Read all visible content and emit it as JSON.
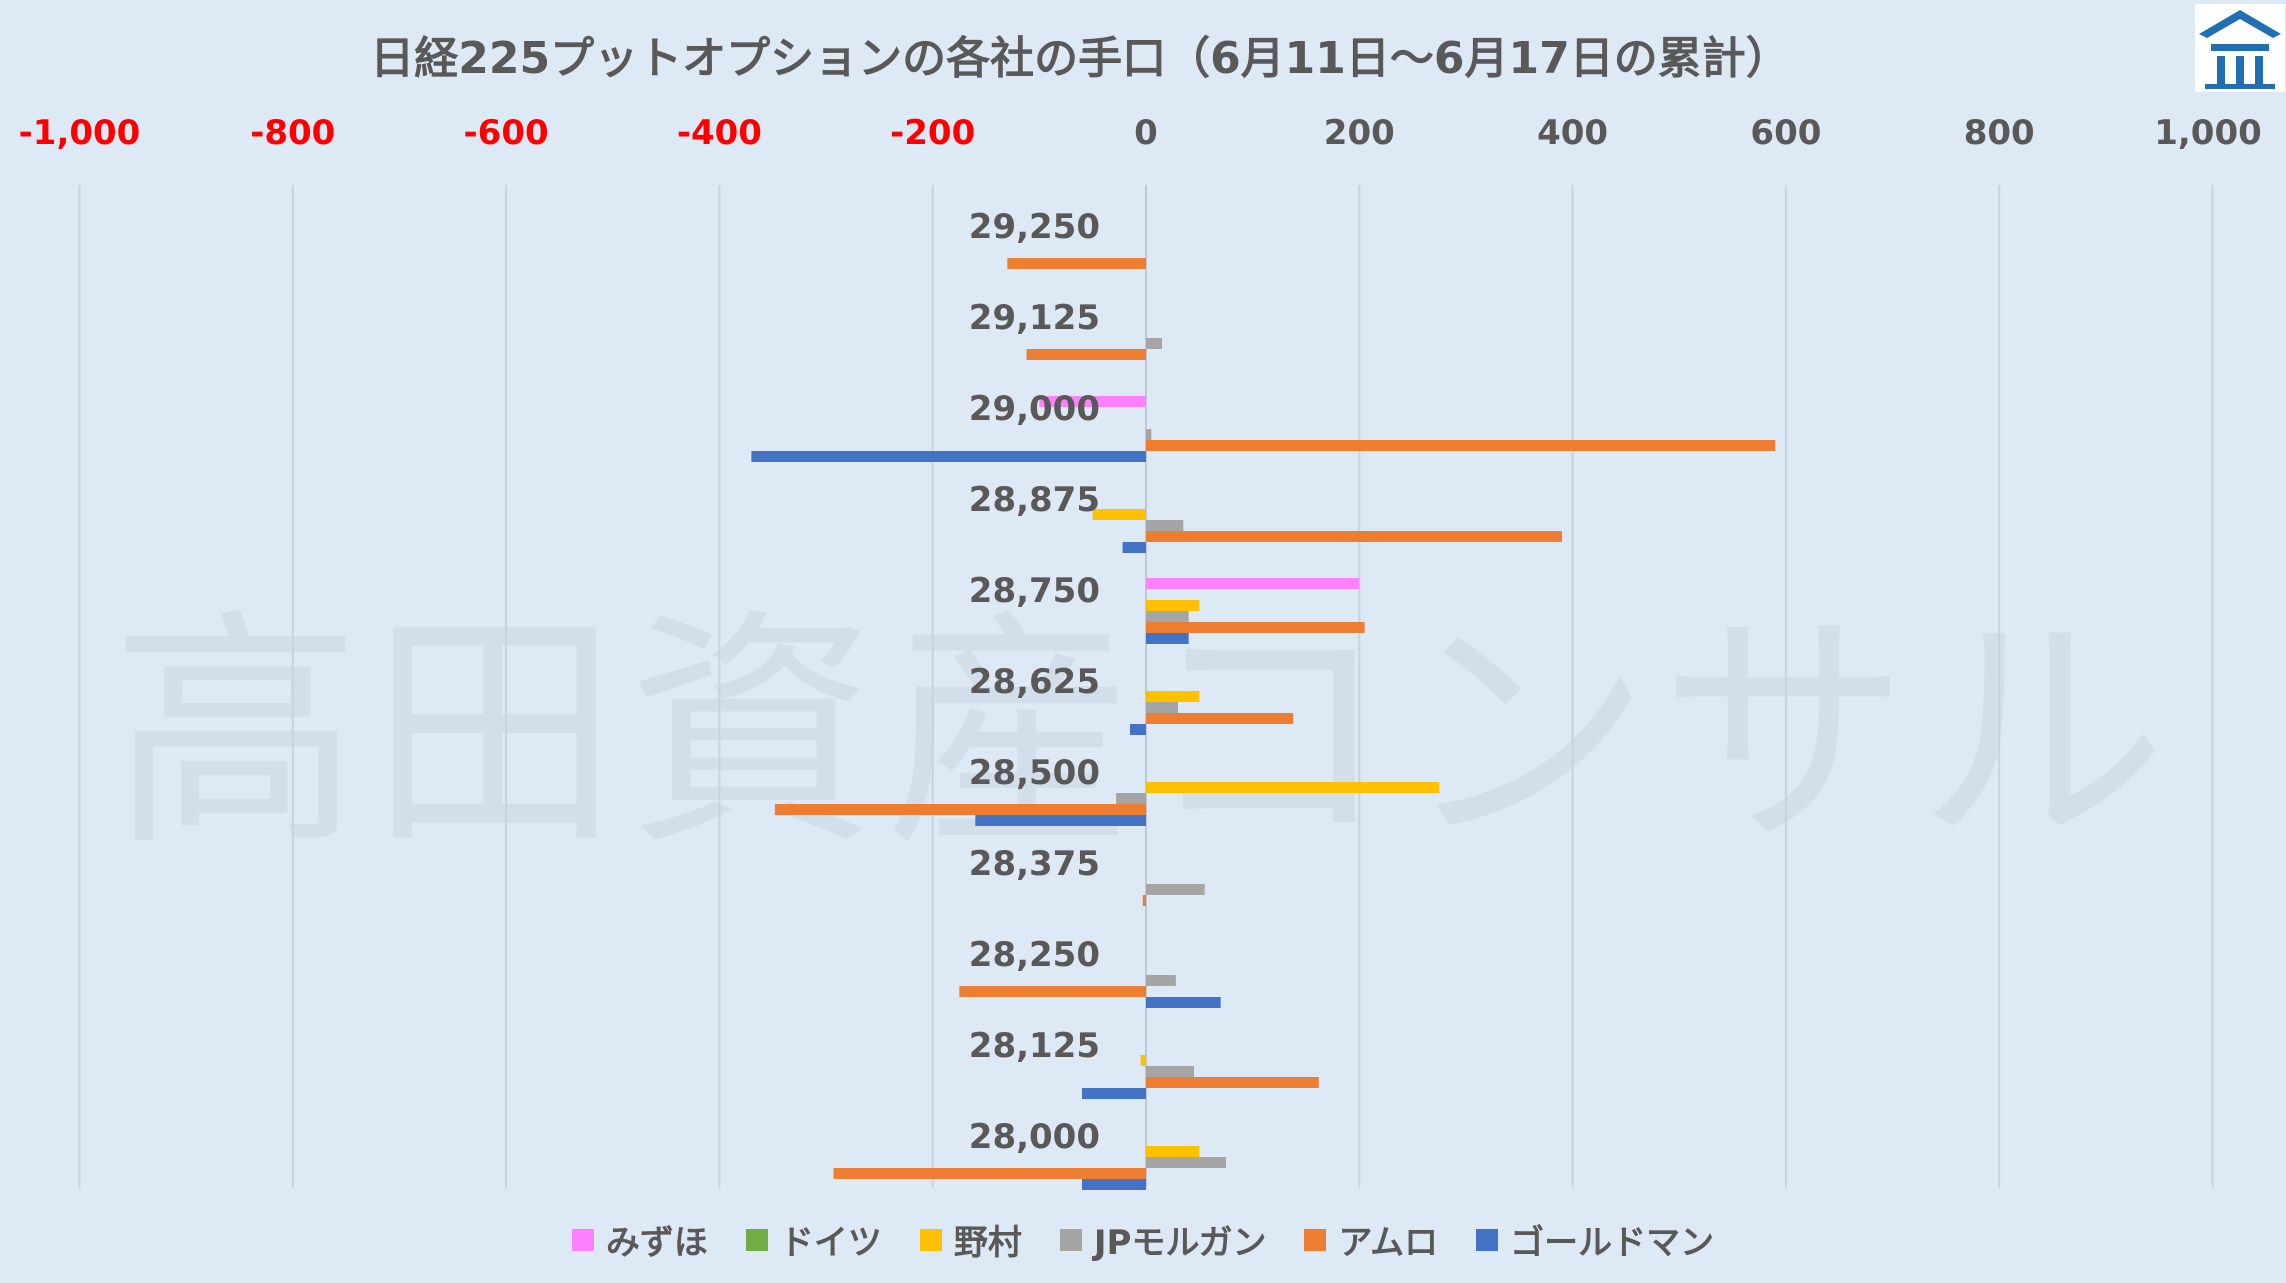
{
  "colors": {
    "background": "#dde9f5",
    "negative_tick": "#ff0000",
    "positive_tick": "#595959",
    "gridline": "#c9d3dd"
  },
  "logo": {
    "icon": "shrine-roof-logo",
    "color": "#1f6fb2"
  },
  "watermark": "高田資産コンサル",
  "chart_data": {
    "type": "bar",
    "orientation": "horizontal",
    "title": "日経225プットオプションの各社の手口（6月11日～6月17日の累計）",
    "xlim": [
      -1000,
      1000
    ],
    "x_ticks": [
      -1000,
      -800,
      -600,
      -400,
      -200,
      0,
      200,
      400,
      600,
      800,
      1000
    ],
    "x_tick_labels": [
      "-1,000",
      "-800",
      "-600",
      "-400",
      "-200",
      "0",
      "200",
      "400",
      "600",
      "800",
      "1,000"
    ],
    "grid": true,
    "legend_position": "bottom",
    "categories": [
      "29,250",
      "29,125",
      "29,000",
      "28,875",
      "28,750",
      "28,625",
      "28,500",
      "28,375",
      "28,250",
      "28,125",
      "28,000"
    ],
    "series": [
      {
        "name": "みずほ",
        "color": "#ff80ff",
        "values": [
          0,
          0,
          -100,
          0,
          200,
          0,
          0,
          0,
          0,
          0,
          0
        ]
      },
      {
        "name": "ドイツ",
        "color": "#70ad47",
        "values": [
          0,
          0,
          0,
          0,
          0,
          0,
          0,
          0,
          0,
          0,
          0
        ]
      },
      {
        "name": "野村",
        "color": "#ffc000",
        "values": [
          0,
          0,
          0,
          -50,
          50,
          50,
          275,
          0,
          0,
          -5,
          50
        ]
      },
      {
        "name": "JPモルガン",
        "color": "#a5a5a5",
        "values": [
          0,
          15,
          5,
          35,
          40,
          30,
          -28,
          55,
          28,
          45,
          75
        ]
      },
      {
        "name": "アムロ",
        "color": "#ed7d31",
        "values": [
          -130,
          -112,
          590,
          390,
          205,
          138,
          -348,
          -3,
          -175,
          162,
          -293
        ]
      },
      {
        "name": "ゴールドマン",
        "color": "#4472c4",
        "values": [
          0,
          0,
          -370,
          -22,
          40,
          -15,
          -160,
          0,
          70,
          -60,
          -60
        ]
      }
    ]
  }
}
